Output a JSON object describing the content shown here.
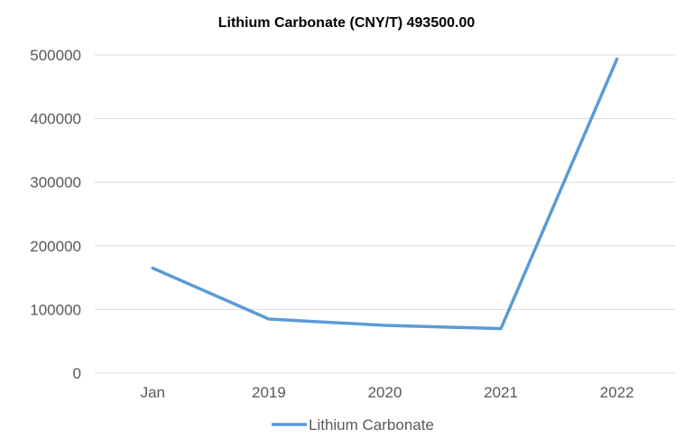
{
  "chart_data": {
    "type": "line",
    "title": "Lithium Carbonate (CNY/T) 493500.00",
    "categories": [
      "Jan",
      "2019",
      "2020",
      "2021",
      "2022"
    ],
    "series": [
      {
        "name": "Lithium Carbonate",
        "values": [
          165000,
          85000,
          75000,
          70000,
          493500
        ],
        "color": "#5b9bd5"
      }
    ],
    "yticks": [
      "0",
      "100000",
      "200000",
      "300000",
      "400000",
      "500000"
    ],
    "ylim": [
      0,
      500000
    ],
    "grid": true,
    "legend_position": "bottom"
  }
}
